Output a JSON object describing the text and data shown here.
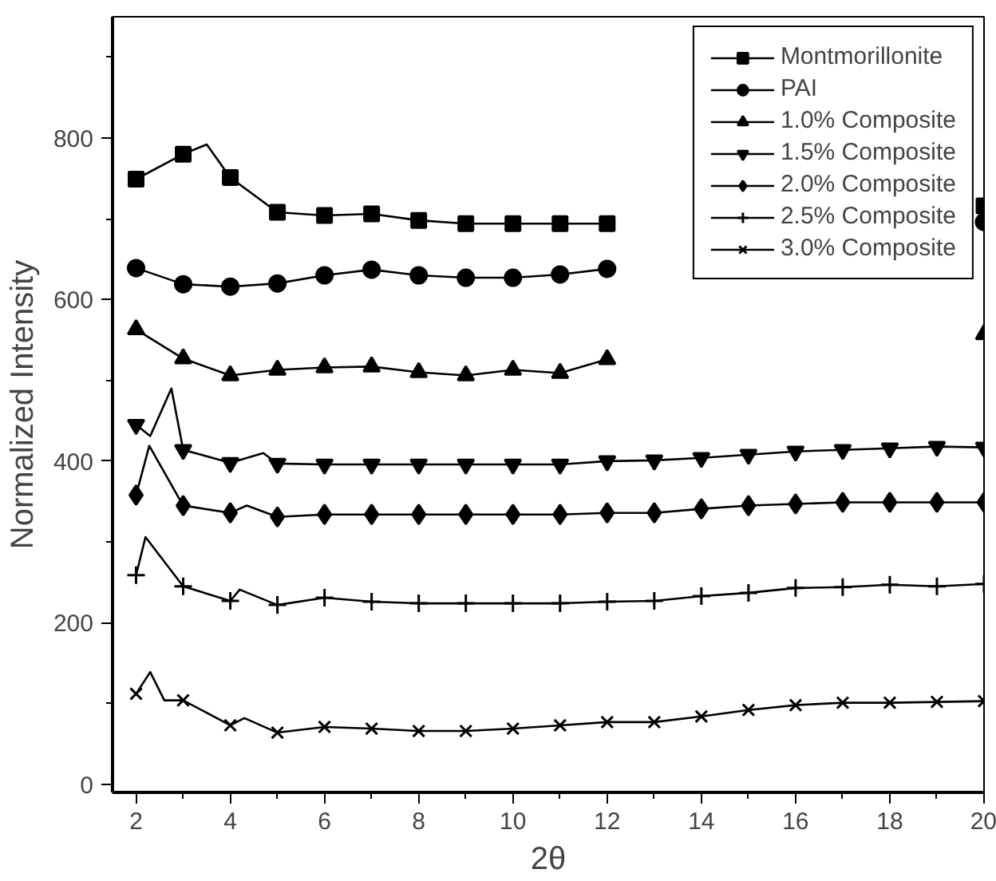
{
  "chart_data": {
    "type": "line",
    "xlabel": "2θ",
    "ylabel": "Normalized Intensity",
    "xlim": [
      1.5,
      20
    ],
    "ylim": [
      -10,
      950
    ],
    "xticks": [
      2,
      {
        "value": 3,
        "label": null
      },
      4,
      {
        "value": 5,
        "label": null
      },
      6,
      {
        "value": 7,
        "label": null
      },
      8,
      {
        "value": 9,
        "label": null
      },
      10,
      {
        "value": 11,
        "label": null
      },
      12,
      {
        "value": 13,
        "label": null
      },
      14,
      {
        "value": 15,
        "label": null
      },
      16,
      {
        "value": 17,
        "label": null
      },
      18,
      {
        "value": 19,
        "label": null
      },
      20
    ],
    "yticks": [
      0,
      {
        "value": 100,
        "label": null
      },
      200,
      {
        "value": 300,
        "label": null
      },
      400,
      {
        "value": 500,
        "label": null
      },
      600,
      {
        "value": 700,
        "label": null
      },
      800,
      {
        "value": 900,
        "label": null
      }
    ],
    "grid": false,
    "legend": "top right",
    "series": [
      {
        "color": "#000000",
        "marker": "none",
        "x": [
          2,
          3,
          3.5,
          4,
          5,
          6,
          7,
          8,
          9,
          10,
          11,
          12
        ],
        "values": [
          749,
          780,
          792,
          751,
          708,
          704,
          706,
          698,
          694,
          694,
          694,
          694
        ]
      },
      {
        "type": "scatter",
        "name": "Montmorillonite",
        "color": "#000000",
        "marker": "square",
        "x": [
          2,
          3,
          4,
          5,
          6,
          7,
          8,
          9,
          10,
          11,
          12,
          13,
          14,
          15,
          16,
          17,
          18,
          19,
          20
        ],
        "values": [
          749,
          780,
          751,
          708,
          704,
          706,
          698,
          694,
          694,
          694,
          694,
          null,
          null,
          null,
          null,
          null,
          null,
          null,
          716
        ]
      },
      {
        "color": "#000000",
        "marker": "none",
        "x": [
          2,
          3,
          4,
          5,
          6,
          7,
          8,
          9,
          10,
          11,
          12
        ],
        "values": [
          639,
          619,
          616,
          620,
          630,
          637,
          630,
          627,
          627,
          631,
          638
        ]
      },
      {
        "type": "scatter",
        "name": "PAI",
        "color": "#000000",
        "marker": "circle",
        "x": [
          2,
          3,
          4,
          5,
          6,
          7,
          8,
          9,
          10,
          11,
          12,
          13,
          14,
          15,
          16,
          17,
          18,
          19,
          20
        ],
        "values": [
          639,
          619,
          616,
          620,
          630,
          637,
          630,
          627,
          627,
          631,
          638,
          null,
          null,
          null,
          null,
          null,
          null,
          null,
          696
        ]
      },
      {
        "color": "#000000",
        "marker": "none",
        "x": [
          2,
          3,
          4,
          5,
          6,
          7,
          8,
          9,
          10,
          11,
          12
        ],
        "values": [
          563,
          527,
          506,
          513,
          516,
          517,
          510,
          506,
          513,
          509,
          526
        ]
      },
      {
        "type": "scatter",
        "name": "1.0% Composite",
        "color": "#000000",
        "marker": "triangle",
        "x": [
          2,
          3,
          4,
          5,
          6,
          7,
          8,
          9,
          10,
          11,
          12,
          13,
          14,
          15,
          16,
          17,
          18,
          19,
          20
        ],
        "values": [
          563,
          527,
          506,
          513,
          516,
          517,
          510,
          506,
          513,
          509,
          526,
          null,
          null,
          null,
          null,
          null,
          null,
          null,
          557
        ]
      },
      {
        "color": "#000000",
        "marker": "none",
        "x": [
          2,
          2.3,
          2.75,
          3,
          4,
          4.7,
          5,
          6,
          7,
          8,
          9,
          10,
          11,
          12,
          13,
          14,
          15,
          16,
          17,
          18,
          19,
          20
        ],
        "values": [
          445,
          431,
          490,
          414,
          398,
          410,
          397,
          396,
          396,
          396,
          396,
          396,
          396,
          400,
          401,
          404,
          408,
          412,
          414,
          416,
          418,
          417
        ]
      },
      {
        "type": "scatter",
        "name": "1.5% Composite",
        "color": "#000000",
        "marker": "triangle_down",
        "x": [
          2,
          3,
          4,
          5,
          6,
          7,
          8,
          9,
          10,
          11,
          12,
          13,
          14,
          15,
          16,
          17,
          18,
          19,
          20
        ],
        "values": [
          445,
          414,
          398,
          397,
          396,
          396,
          396,
          396,
          396,
          396,
          400,
          401,
          404,
          408,
          412,
          414,
          416,
          418,
          417
        ]
      },
      {
        "color": "#000000",
        "marker": "none",
        "x": [
          2,
          2.28,
          3,
          4,
          4.35,
          5,
          6,
          7,
          8,
          9,
          10,
          11,
          12,
          13,
          14,
          15,
          16,
          17,
          18,
          19,
          20
        ],
        "values": [
          358,
          419,
          345,
          336,
          345,
          331,
          334,
          334,
          334,
          334,
          334,
          334,
          336,
          336,
          341,
          345,
          347,
          349,
          349,
          349,
          349
        ]
      },
      {
        "type": "scatter",
        "name": "2.0% Composite",
        "color": "#000000",
        "marker": "diamond",
        "x": [
          2,
          3,
          4,
          5,
          6,
          7,
          8,
          9,
          10,
          11,
          12,
          13,
          14,
          15,
          16,
          17,
          18,
          19,
          20
        ],
        "values": [
          358,
          345,
          336,
          331,
          334,
          334,
          334,
          334,
          334,
          334,
          336,
          336,
          341,
          345,
          347,
          349,
          349,
          349,
          349
        ]
      },
      {
        "color": "#000000",
        "marker": "none",
        "x": [
          2,
          2.2,
          3,
          4,
          4.2,
          5,
          6,
          7,
          8,
          9,
          10,
          11,
          12,
          13,
          14,
          15,
          16,
          17,
          18,
          19,
          20
        ],
        "values": [
          259,
          306,
          245,
          227,
          241,
          222,
          231,
          226,
          224,
          224,
          224,
          224,
          226,
          227,
          233,
          237,
          243,
          244,
          247,
          245,
          248
        ]
      },
      {
        "type": "scatter",
        "name": "2.5% Composite",
        "color": "#000000",
        "marker": "cross",
        "x": [
          2,
          3,
          4,
          5,
          6,
          7,
          8,
          9,
          10,
          11,
          12,
          13,
          14,
          15,
          16,
          17,
          18,
          19,
          20
        ],
        "values": [
          259,
          245,
          227,
          222,
          231,
          226,
          224,
          224,
          224,
          224,
          226,
          227,
          233,
          237,
          243,
          244,
          247,
          245,
          248
        ]
      },
      {
        "color": "#000000",
        "marker": "none",
        "x": [
          2,
          2.3,
          2.6,
          3,
          4,
          4.3,
          5,
          6,
          7,
          8,
          9,
          10,
          11,
          12,
          13,
          14,
          15,
          16,
          17,
          18,
          19,
          20
        ],
        "values": [
          112,
          139,
          104,
          104,
          73,
          82,
          64,
          71,
          69,
          66,
          66,
          69,
          73,
          77,
          77,
          84,
          92,
          98,
          101,
          101,
          102,
          103
        ]
      },
      {
        "type": "scatter",
        "name": "3.0% Composite",
        "color": "#000000",
        "marker": "x",
        "x": [
          2,
          3,
          4,
          5,
          6,
          7,
          8,
          9,
          10,
          11,
          12,
          13,
          14,
          15,
          16,
          17,
          18,
          19,
          20
        ],
        "values": [
          112,
          104,
          73,
          64,
          71,
          69,
          66,
          66,
          69,
          73,
          77,
          77,
          84,
          92,
          98,
          101,
          101,
          102,
          103
        ]
      }
    ]
  }
}
